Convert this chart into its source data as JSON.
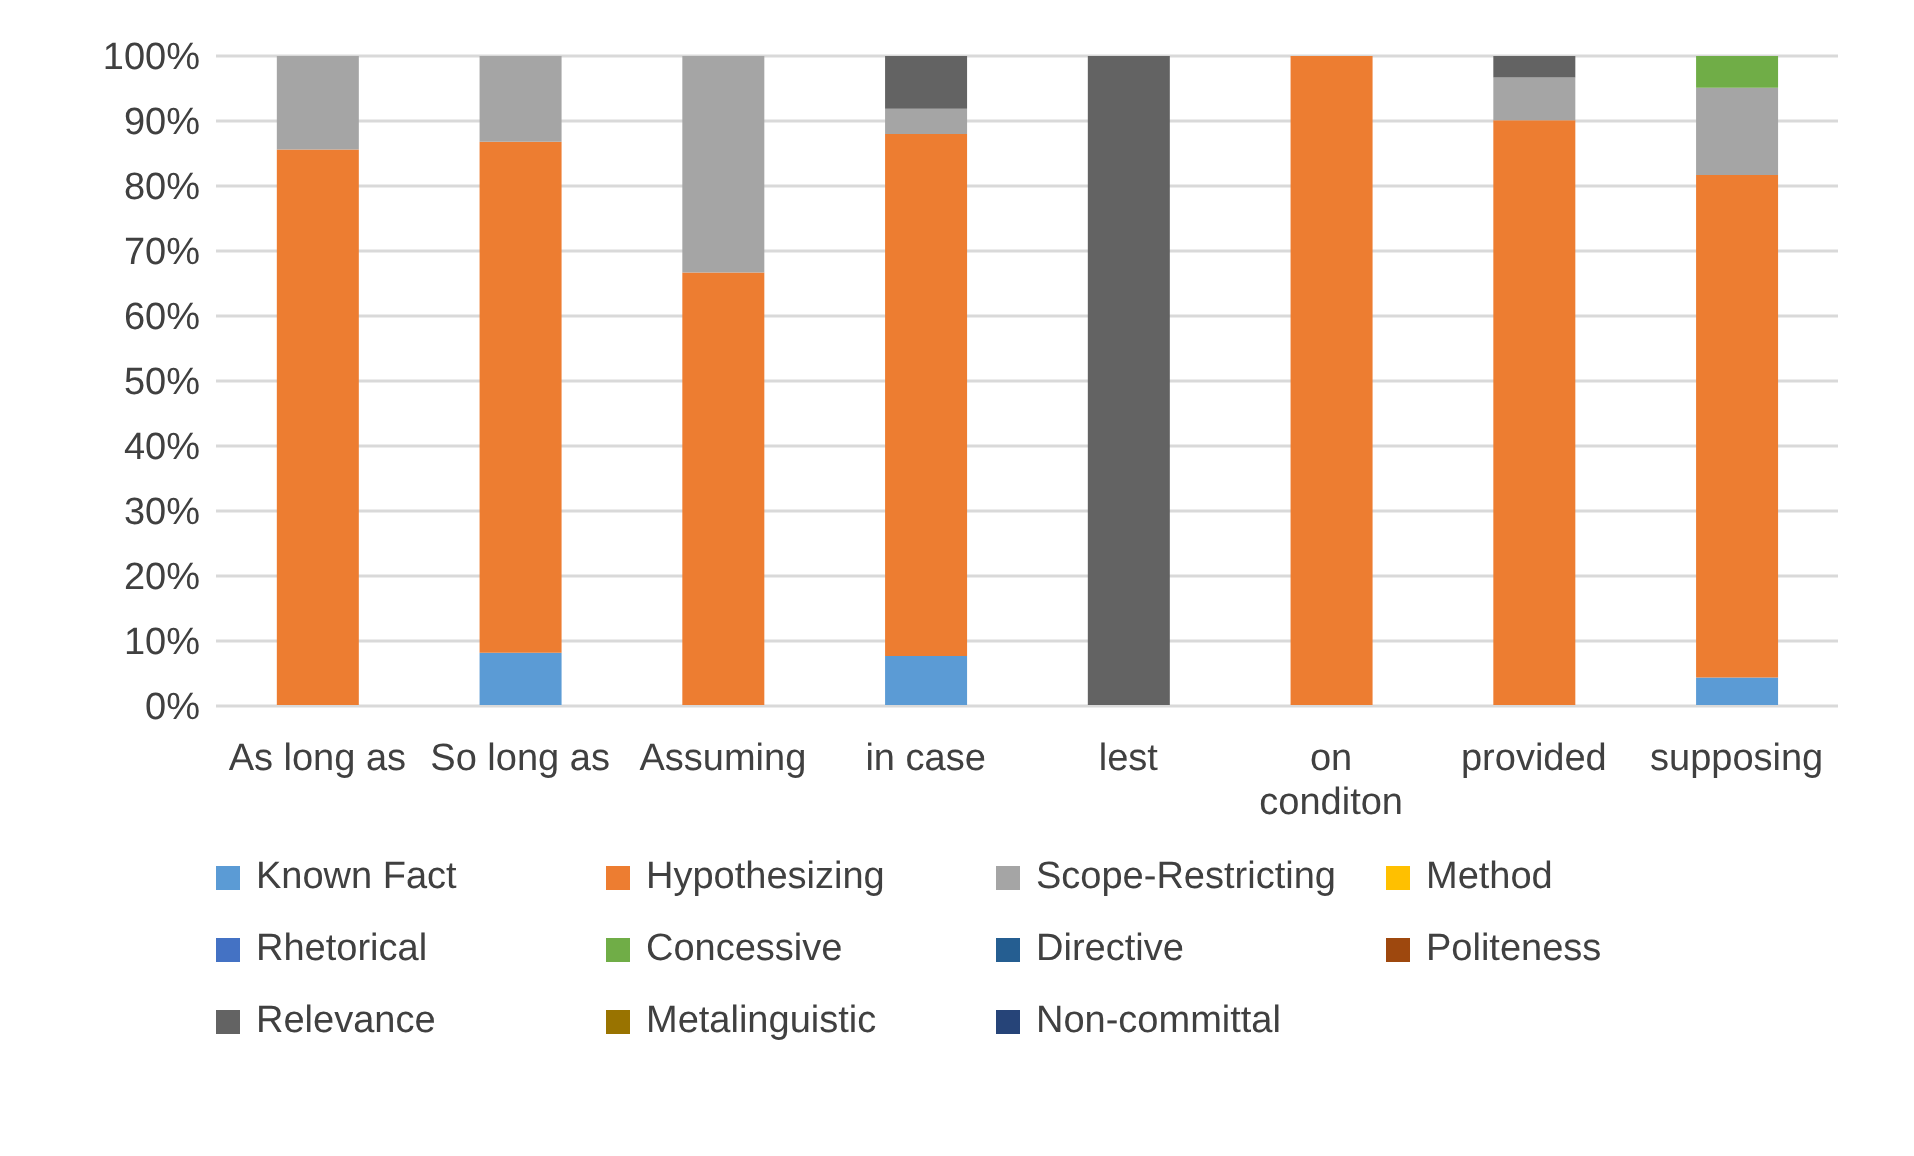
{
  "chart_data": {
    "type": "bar",
    "stacked": true,
    "categories": [
      "As long as",
      "So long as",
      "Assuming",
      "in case",
      "lest",
      "on conditon",
      "provided",
      "supposing"
    ],
    "series": [
      {
        "name": "Known Fact",
        "color": "#5b9bd5",
        "values": [
          0,
          8.2,
          0,
          7.7,
          0,
          0,
          0,
          4.4
        ]
      },
      {
        "name": "Hypothesizing",
        "color": "#ed7d31",
        "values": [
          85.6,
          78.6,
          66.7,
          80.3,
          0,
          100,
          90.1,
          77.3
        ]
      },
      {
        "name": "Scope-Restricting",
        "color": "#a5a5a5",
        "values": [
          14.4,
          13.2,
          33.3,
          3.9,
          0,
          0,
          6.6,
          13.4
        ]
      },
      {
        "name": "Method",
        "color": "#ffc000",
        "values": [
          0,
          0,
          0,
          0,
          0,
          0,
          0,
          0
        ]
      },
      {
        "name": "Rhetorical",
        "color": "#4472c4",
        "values": [
          0,
          0,
          0,
          0,
          0,
          0,
          0,
          0
        ]
      },
      {
        "name": "Concessive",
        "color": "#70ad47",
        "values": [
          0,
          0,
          0,
          0,
          0,
          0,
          0,
          4.9
        ]
      },
      {
        "name": "Directive",
        "color": "#255e91",
        "values": [
          0,
          0,
          0,
          0,
          0,
          0,
          0,
          0
        ]
      },
      {
        "name": "Politeness",
        "color": "#9e480e",
        "values": [
          0,
          0,
          0,
          0,
          0,
          0,
          0,
          0
        ]
      },
      {
        "name": "Relevance",
        "color": "#636363",
        "values": [
          0,
          0,
          0,
          8.1,
          100,
          0,
          3.3,
          0
        ]
      },
      {
        "name": "Metalinguistic",
        "color": "#997300",
        "values": [
          0,
          0,
          0,
          0,
          0,
          0,
          0,
          0
        ]
      },
      {
        "name": "Non-committal",
        "color": "#264478",
        "values": [
          0,
          0,
          0,
          0,
          0,
          0,
          0,
          0
        ]
      }
    ],
    "ylim": [
      0,
      100
    ],
    "yticks": [
      {
        "value": 0,
        "label": "0%"
      },
      {
        "value": 10,
        "label": "10%"
      },
      {
        "value": 20,
        "label": "20%"
      },
      {
        "value": 30,
        "label": "30%"
      },
      {
        "value": 40,
        "label": "40%"
      },
      {
        "value": 50,
        "label": "50%"
      },
      {
        "value": 60,
        "label": "60%"
      },
      {
        "value": 70,
        "label": "70%"
      },
      {
        "value": 80,
        "label": "80%"
      },
      {
        "value": 90,
        "label": "90%"
      },
      {
        "value": 100,
        "label": "100%"
      }
    ],
    "grid": "y",
    "legend": "bottom"
  }
}
